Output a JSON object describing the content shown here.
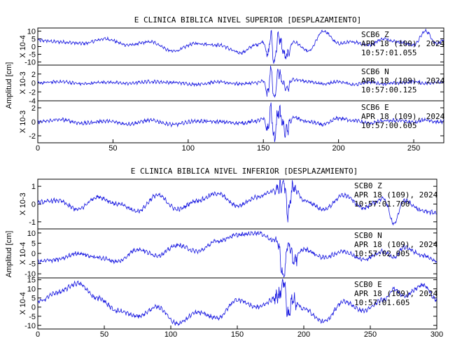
{
  "chart_data": [
    {
      "type": "line",
      "title": "E CLINICA BIBLICA NIVEL SUPERIOR [DESPLAZAMIENTO]",
      "ylabel": "Amplitud [cm]",
      "xlim": [
        0,
        270
      ],
      "xticks": [
        0,
        50,
        100,
        150,
        200,
        250
      ],
      "traces": [
        {
          "name": "SCB6 Z",
          "scale_label": "X 10-4",
          "ylim": [
            -12,
            12
          ],
          "yticks": [
            -10,
            -5,
            0,
            5,
            10
          ],
          "info": [
            "SCB6   Z",
            "APR 18 (109), 2024",
            "10:57:01.055"
          ],
          "x": [
            0,
            15,
            30,
            45,
            60,
            75,
            90,
            105,
            120,
            135,
            145,
            150,
            153,
            155,
            157,
            160,
            165,
            170,
            180,
            190,
            200,
            210,
            220,
            230,
            240,
            250,
            258,
            265,
            270
          ],
          "y": [
            4,
            3,
            2,
            5,
            1,
            3,
            -3,
            2,
            1,
            -4,
            1,
            3,
            -6,
            8,
            -10,
            6,
            -7,
            3,
            -3,
            10,
            2,
            3,
            1,
            5,
            3,
            1,
            10,
            2,
            4
          ]
        },
        {
          "name": "SCB6 N",
          "scale_label": "X 10-3",
          "ylim": [
            -4,
            4
          ],
          "yticks": [
            -4,
            -2,
            0,
            2
          ],
          "info": [
            "SCB6   N",
            "APR 18 (109), 2024",
            "10:57:00.125"
          ],
          "x": [
            0,
            15,
            30,
            45,
            60,
            75,
            90,
            105,
            120,
            135,
            145,
            150,
            153,
            155,
            157,
            160,
            165,
            170,
            180,
            190,
            200,
            210,
            220,
            230,
            240,
            250,
            258,
            265,
            270
          ],
          "y": [
            0,
            0.3,
            -0.2,
            0.2,
            -0.1,
            0.3,
            0.1,
            -0.3,
            0.2,
            -0.2,
            0,
            0.4,
            -2.5,
            3.3,
            -3.2,
            2.3,
            -1.5,
            0.8,
            0.3,
            -0.2,
            0.3,
            -0.4,
            0.2,
            -0.2,
            0,
            0.3,
            -0.1,
            0.2,
            0.1
          ]
        },
        {
          "name": "SCB6 E",
          "scale_label": "X 10-3",
          "ylim": [
            -3,
            3
          ],
          "yticks": [
            -2,
            0,
            2
          ],
          "info": [
            "SCB6   E",
            "APR 18 (109), 2024",
            "10:57:00.605"
          ],
          "x": [
            0,
            15,
            30,
            45,
            60,
            75,
            90,
            105,
            120,
            135,
            145,
            150,
            153,
            155,
            157,
            160,
            165,
            170,
            180,
            190,
            200,
            210,
            220,
            230,
            240,
            250,
            258,
            265,
            270
          ],
          "y": [
            0,
            0.3,
            -0.2,
            0.1,
            -0.3,
            0.2,
            -0.4,
            0.1,
            0,
            -0.2,
            0.1,
            0.4,
            -1.2,
            2,
            -2.5,
            1.5,
            -1.4,
            0.6,
            0,
            -0.4,
            0.5,
            0.2,
            -0.2,
            0.1,
            0.2,
            -0.1,
            0.3,
            0,
            0
          ]
        }
      ]
    },
    {
      "type": "line",
      "title": "E CLINICA BIBLICA NIVEL INFERIOR [DESPLAZAMIENTO]",
      "ylabel": "Amplitud [cm]",
      "xlim": [
        0,
        300
      ],
      "xticks": [
        0,
        50,
        100,
        150,
        200,
        250,
        300
      ],
      "traces": [
        {
          "name": "SCB0 Z",
          "scale_label": "X 10-3",
          "ylim": [
            -1.4,
            1.4
          ],
          "yticks": [
            -1,
            0,
            1
          ],
          "info": [
            "SCB0   Z",
            "APR 18 (109), 2024",
            "10:57:01.700"
          ],
          "x": [
            0,
            15,
            30,
            45,
            60,
            75,
            90,
            105,
            120,
            135,
            150,
            165,
            180,
            185,
            188,
            192,
            200,
            215,
            230,
            245,
            260,
            268,
            275,
            290,
            300
          ],
          "y": [
            0.1,
            0.2,
            -0.3,
            0.4,
            0,
            -0.4,
            0.5,
            -0.3,
            0.2,
            0.6,
            -0.1,
            0.4,
            0.8,
            1.2,
            -0.5,
            1.0,
            0.2,
            -0.3,
            0.5,
            -0.2,
            0.3,
            -1.1,
            0.2,
            -0.4,
            -0.5
          ]
        },
        {
          "name": "SCB0 N",
          "scale_label": "X 10-4",
          "ylim": [
            -12,
            12
          ],
          "yticks": [
            -10,
            -5,
            0,
            5,
            10
          ],
          "info": [
            "SCB0   N",
            "APR 18 (109), 2024",
            "10:57:02.005"
          ],
          "x": [
            0,
            15,
            30,
            45,
            60,
            75,
            90,
            105,
            120,
            135,
            150,
            165,
            180,
            185,
            188,
            192,
            200,
            215,
            230,
            245,
            260,
            268,
            275,
            290,
            300
          ],
          "y": [
            -4,
            -3,
            0,
            -2,
            -4,
            2,
            -1,
            4,
            1,
            6,
            9,
            10,
            6,
            -12,
            5,
            -3,
            2,
            -2,
            1,
            -3,
            1,
            -2,
            3,
            -1,
            -4
          ]
        },
        {
          "name": "SCB0 E",
          "scale_label": "X 10-4",
          "ylim": [
            -12,
            16
          ],
          "yticks": [
            -10,
            -5,
            0,
            5,
            10,
            15
          ],
          "info": [
            "SCB0   E",
            "APR 18 (109), 2024",
            "10:57:01.605"
          ],
          "x": [
            0,
            15,
            30,
            45,
            60,
            75,
            90,
            105,
            120,
            135,
            150,
            165,
            180,
            185,
            188,
            192,
            200,
            215,
            230,
            245,
            260,
            268,
            275,
            290,
            300
          ],
          "y": [
            3,
            8,
            13,
            5,
            -2,
            -5,
            0,
            -9,
            -3,
            -6,
            4,
            0,
            5,
            14,
            -4,
            4,
            -1,
            -8,
            3,
            -2,
            4,
            10,
            6,
            12,
            4
          ]
        }
      ]
    }
  ]
}
